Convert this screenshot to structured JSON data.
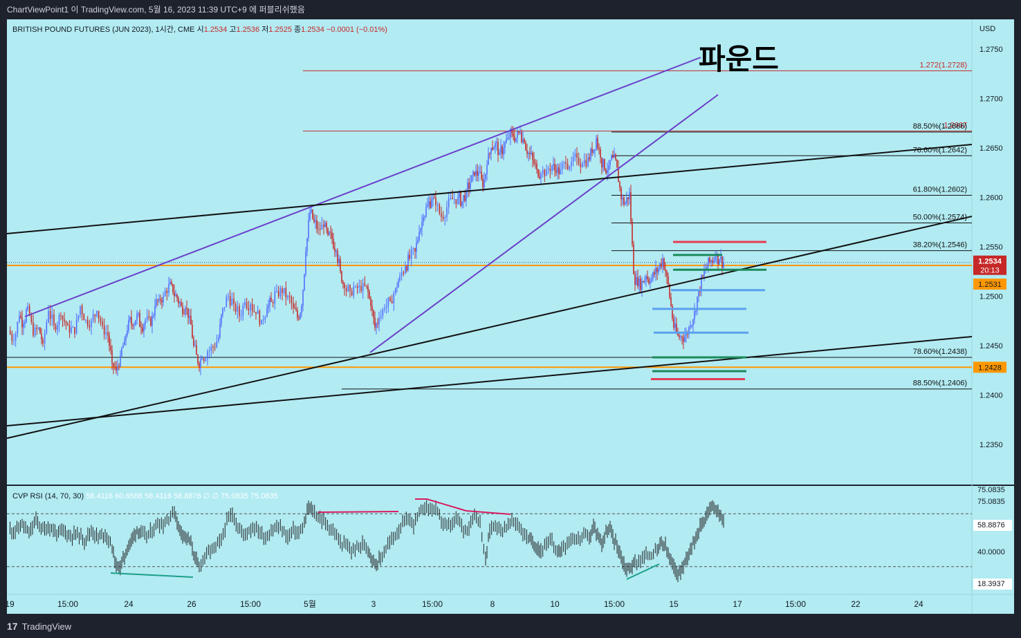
{
  "topbar": {
    "text": "ChartViewPoint1 이 TradingView.com, 5월 16, 2023 11:39 UTC+9 에 퍼블리쉬했음"
  },
  "footer": {
    "logo_text": "TradingView",
    "logo_mark": "17"
  },
  "colors": {
    "bg": "#b2ebf2",
    "bull": "#546dff",
    "bear": "#c62828",
    "orange": "#ff9800",
    "purple": "#6a3fc9",
    "black": "#111111",
    "red": "#e53951",
    "green": "#1b8a5a",
    "blue": "#5aa0f0"
  },
  "chart_data": {
    "type": "candlestick",
    "legend": {
      "symbol": "BRITISH POUND FUTURES (JUN 2023), 1시간, CME",
      "o_label": "시",
      "o": "1.2534",
      "h_label": "고",
      "h": "1.2536",
      "l_label": "저",
      "l": "1.2525",
      "c_label": "종",
      "c": "1.2534",
      "change": "−0.0001 (−0.01%)"
    },
    "annotation": "파운드",
    "currency": "USD",
    "ylim": [
      1.231,
      1.278
    ],
    "y_ticks": [
      "1.2750",
      "1.2700",
      "1.2650",
      "1.2600",
      "1.2550",
      "1.2500",
      "1.2450",
      "1.2400",
      "1.2350"
    ],
    "price_badges": [
      {
        "label": "1.2534",
        "sub": "20:13",
        "value": 1.2534,
        "color": "#c62828"
      },
      {
        "label": "1.2531",
        "value": 1.2531,
        "color": "#ff9800"
      },
      {
        "label": "1.2428",
        "value": 1.2428,
        "color": "#ff9800"
      }
    ],
    "fib_levels": [
      {
        "label": "1.272(1.2728)",
        "value": 1.2728,
        "color": "#c62828"
      },
      {
        "label": "1.2667",
        "value": 1.2667,
        "color": "#c62828"
      },
      {
        "label": "88.50%(1.2666)",
        "value": 1.2666,
        "color": "#111111"
      },
      {
        "label": "78.60%(1.2642)",
        "value": 1.2642,
        "color": "#111111"
      },
      {
        "label": "61.80%(1.2602)",
        "value": 1.2602,
        "color": "#111111"
      },
      {
        "label": "50.00%(1.2574)",
        "value": 1.2574,
        "color": "#111111"
      },
      {
        "label": "38.20%(1.2546)",
        "value": 1.2546,
        "color": "#111111"
      },
      {
        "label": "78.60%(1.2438)",
        "value": 1.2438,
        "color": "#111111"
      },
      {
        "label": "88.50%(1.2406)",
        "value": 1.2406,
        "color": "#111111"
      }
    ],
    "x_ticks": [
      "19",
      "15:00",
      "24",
      "26",
      "15:00",
      "5월",
      "3",
      "15:00",
      "8",
      "10",
      "15:00",
      "15",
      "17",
      "15:00",
      "22",
      "24"
    ],
    "rsi": {
      "legend_name": "CVP RSI (14, 70, 30)",
      "legend_values": [
        "58.4116",
        "60.6568",
        "58.4116",
        "58.8876",
        "∅",
        "∅",
        "75.0835",
        "75.0835"
      ],
      "y_labels": [
        "75.0835",
        "75.0835",
        "58.8876",
        "40.0000",
        "18.3937"
      ],
      "levels": [
        70,
        30
      ],
      "ylim": [
        10,
        90
      ]
    },
    "price_path": [
      [
        0,
        1.2465
      ],
      [
        8,
        1.2455
      ],
      [
        16,
        1.248
      ],
      [
        22,
        1.2472
      ],
      [
        28,
        1.249
      ],
      [
        36,
        1.246
      ],
      [
        44,
        1.2468
      ],
      [
        50,
        1.2452
      ],
      [
        58,
        1.2485
      ],
      [
        66,
        1.247
      ],
      [
        76,
        1.248
      ],
      [
        86,
        1.247
      ],
      [
        96,
        1.2462
      ],
      [
        104,
        1.249
      ],
      [
        112,
        1.2476
      ],
      [
        120,
        1.2475
      ],
      [
        128,
        1.2485
      ],
      [
        136,
        1.247
      ],
      [
        144,
        1.246
      ],
      [
        150,
        1.2432
      ],
      [
        156,
        1.2425
      ],
      [
        162,
        1.244
      ],
      [
        168,
        1.2455
      ],
      [
        174,
        1.2476
      ],
      [
        180,
        1.247
      ],
      [
        186,
        1.2482
      ],
      [
        192,
        1.2468
      ],
      [
        198,
        1.2476
      ],
      [
        206,
        1.247
      ],
      [
        212,
        1.249
      ],
      [
        218,
        1.2497
      ],
      [
        224,
        1.25
      ],
      [
        232,
        1.2512
      ],
      [
        238,
        1.2504
      ],
      [
        244,
        1.2498
      ],
      [
        250,
        1.249
      ],
      [
        256,
        1.2488
      ],
      [
        262,
        1.248
      ],
      [
        268,
        1.245
      ],
      [
        274,
        1.2432
      ],
      [
        280,
        1.2437
      ],
      [
        288,
        1.2444
      ],
      [
        296,
        1.2448
      ],
      [
        304,
        1.2458
      ],
      [
        310,
        1.2488
      ],
      [
        318,
        1.25
      ],
      [
        326,
        1.2492
      ],
      [
        334,
        1.248
      ],
      [
        342,
        1.2494
      ],
      [
        350,
        1.2492
      ],
      [
        358,
        1.2482
      ],
      [
        366,
        1.2476
      ],
      [
        374,
        1.2488
      ],
      [
        380,
        1.2494
      ],
      [
        388,
        1.2505
      ],
      [
        396,
        1.2503
      ],
      [
        404,
        1.25
      ],
      [
        412,
        1.2488
      ],
      [
        418,
        1.2478
      ],
      [
        424,
        1.249
      ],
      [
        430,
        1.2545
      ],
      [
        436,
        1.2585
      ],
      [
        442,
        1.2575
      ],
      [
        448,
        1.2568
      ],
      [
        456,
        1.257
      ],
      [
        462,
        1.2562
      ],
      [
        468,
        1.2558
      ],
      [
        474,
        1.2546
      ],
      [
        480,
        1.2525
      ],
      [
        486,
        1.2508
      ],
      [
        494,
        1.2505
      ],
      [
        502,
        1.251
      ],
      [
        510,
        1.2505
      ],
      [
        518,
        1.251
      ],
      [
        524,
        1.249
      ],
      [
        530,
        1.2468
      ],
      [
        536,
        1.2478
      ],
      [
        544,
        1.2488
      ],
      [
        552,
        1.2495
      ],
      [
        560,
        1.2508
      ],
      [
        566,
        1.252
      ],
      [
        574,
        1.253
      ],
      [
        580,
        1.2538
      ],
      [
        588,
        1.2545
      ],
      [
        594,
        1.2565
      ],
      [
        600,
        1.258
      ],
      [
        606,
        1.2592
      ],
      [
        612,
        1.2598
      ],
      [
        618,
        1.2592
      ],
      [
        626,
        1.258
      ],
      [
        634,
        1.259
      ],
      [
        642,
        1.2598
      ],
      [
        650,
        1.26
      ],
      [
        656,
        1.2596
      ],
      [
        662,
        1.2606
      ],
      [
        668,
        1.2615
      ],
      [
        674,
        1.2622
      ],
      [
        680,
        1.2625
      ],
      [
        686,
        1.261
      ],
      [
        692,
        1.2633
      ],
      [
        698,
        1.265
      ],
      [
        704,
        1.2655
      ],
      [
        710,
        1.2645
      ],
      [
        716,
        1.265
      ],
      [
        722,
        1.266
      ],
      [
        728,
        1.2665
      ],
      [
        734,
        1.266
      ],
      [
        740,
        1.2666
      ],
      [
        746,
        1.2655
      ],
      [
        752,
        1.2645
      ],
      [
        758,
        1.2638
      ],
      [
        764,
        1.2628
      ],
      [
        770,
        1.2624
      ],
      [
        778,
        1.2628
      ],
      [
        786,
        1.2632
      ],
      [
        792,
        1.2625
      ],
      [
        798,
        1.2628
      ],
      [
        806,
        1.2634
      ],
      [
        814,
        1.2636
      ],
      [
        822,
        1.264
      ],
      [
        830,
        1.2634
      ],
      [
        838,
        1.264
      ],
      [
        844,
        1.2645
      ],
      [
        850,
        1.266
      ],
      [
        856,
        1.264
      ],
      [
        862,
        1.2628
      ],
      [
        868,
        1.2632
      ],
      [
        874,
        1.264
      ],
      [
        880,
        1.263
      ],
      [
        886,
        1.2598
      ],
      [
        892,
        1.2594
      ],
      [
        898,
        1.2605
      ],
      [
        904,
        1.2522
      ],
      [
        910,
        1.251
      ],
      [
        916,
        1.2515
      ],
      [
        922,
        1.252
      ],
      [
        928,
        1.2515
      ],
      [
        934,
        1.2522
      ],
      [
        940,
        1.2528
      ],
      [
        946,
        1.2538
      ],
      [
        952,
        1.252
      ],
      [
        958,
        1.249
      ],
      [
        962,
        1.2468
      ],
      [
        968,
        1.246
      ],
      [
        974,
        1.2458
      ],
      [
        980,
        1.2462
      ],
      [
        986,
        1.247
      ],
      [
        992,
        1.2485
      ],
      [
        998,
        1.2505
      ],
      [
        1004,
        1.252
      ],
      [
        1010,
        1.253
      ],
      [
        1016,
        1.2536
      ],
      [
        1022,
        1.254
      ],
      [
        1028,
        1.2537
      ],
      [
        1034,
        1.2534
      ]
    ],
    "rsi_path": [
      [
        0,
        58
      ],
      [
        10,
        57
      ],
      [
        20,
        62
      ],
      [
        30,
        55
      ],
      [
        40,
        65
      ],
      [
        50,
        58
      ],
      [
        60,
        60
      ],
      [
        70,
        55
      ],
      [
        80,
        57
      ],
      [
        90,
        53
      ],
      [
        100,
        55
      ],
      [
        110,
        50
      ],
      [
        120,
        57
      ],
      [
        130,
        52
      ],
      [
        140,
        55
      ],
      [
        150,
        45
      ],
      [
        156,
        30
      ],
      [
        162,
        30
      ],
      [
        168,
        38
      ],
      [
        174,
        46
      ],
      [
        180,
        52
      ],
      [
        186,
        58
      ],
      [
        192,
        55
      ],
      [
        200,
        53
      ],
      [
        208,
        57
      ],
      [
        216,
        63
      ],
      [
        224,
        62
      ],
      [
        232,
        67
      ],
      [
        240,
        72
      ],
      [
        246,
        60
      ],
      [
        252,
        55
      ],
      [
        258,
        52
      ],
      [
        264,
        48
      ],
      [
        270,
        36
      ],
      [
        276,
        30
      ],
      [
        284,
        38
      ],
      [
        292,
        42
      ],
      [
        300,
        45
      ],
      [
        308,
        50
      ],
      [
        316,
        64
      ],
      [
        324,
        70
      ],
      [
        332,
        60
      ],
      [
        340,
        54
      ],
      [
        348,
        58
      ],
      [
        356,
        60
      ],
      [
        364,
        56
      ],
      [
        372,
        52
      ],
      [
        380,
        57
      ],
      [
        388,
        60
      ],
      [
        396,
        58
      ],
      [
        404,
        52
      ],
      [
        412,
        58
      ],
      [
        420,
        55
      ],
      [
        428,
        62
      ],
      [
        434,
        75
      ],
      [
        440,
        72
      ],
      [
        448,
        68
      ],
      [
        456,
        64
      ],
      [
        464,
        60
      ],
      [
        472,
        55
      ],
      [
        480,
        48
      ],
      [
        488,
        46
      ],
      [
        496,
        42
      ],
      [
        504,
        44
      ],
      [
        512,
        47
      ],
      [
        520,
        44
      ],
      [
        526,
        36
      ],
      [
        532,
        32
      ],
      [
        538,
        36
      ],
      [
        546,
        44
      ],
      [
        554,
        50
      ],
      [
        562,
        56
      ],
      [
        570,
        62
      ],
      [
        578,
        66
      ],
      [
        586,
        62
      ],
      [
        594,
        70
      ],
      [
        602,
        75
      ],
      [
        610,
        74
      ],
      [
        618,
        73
      ],
      [
        626,
        65
      ],
      [
        634,
        60
      ],
      [
        642,
        62
      ],
      [
        650,
        66
      ],
      [
        658,
        58
      ],
      [
        666,
        60
      ],
      [
        674,
        70
      ],
      [
        682,
        64
      ],
      [
        690,
        34
      ],
      [
        696,
        58
      ],
      [
        704,
        62
      ],
      [
        712,
        58
      ],
      [
        720,
        60
      ],
      [
        728,
        64
      ],
      [
        736,
        63
      ],
      [
        744,
        55
      ],
      [
        752,
        52
      ],
      [
        758,
        48
      ],
      [
        764,
        45
      ],
      [
        770,
        42
      ],
      [
        778,
        46
      ],
      [
        786,
        50
      ],
      [
        794,
        40
      ],
      [
        800,
        44
      ],
      [
        808,
        48
      ],
      [
        816,
        52
      ],
      [
        824,
        50
      ],
      [
        832,
        54
      ],
      [
        840,
        52
      ],
      [
        846,
        60
      ],
      [
        852,
        54
      ],
      [
        858,
        48
      ],
      [
        864,
        56
      ],
      [
        870,
        58
      ],
      [
        876,
        50
      ],
      [
        882,
        44
      ],
      [
        888,
        34
      ],
      [
        894,
        28
      ],
      [
        900,
        30
      ],
      [
        906,
        33
      ],
      [
        914,
        35
      ],
      [
        922,
        38
      ],
      [
        930,
        40
      ],
      [
        938,
        42
      ],
      [
        944,
        48
      ],
      [
        950,
        45
      ],
      [
        956,
        36
      ],
      [
        962,
        29
      ],
      [
        968,
        25
      ],
      [
        974,
        28
      ],
      [
        980,
        36
      ],
      [
        986,
        44
      ],
      [
        992,
        50
      ],
      [
        998,
        58
      ],
      [
        1004,
        64
      ],
      [
        1010,
        70
      ],
      [
        1016,
        75
      ],
      [
        1022,
        75
      ],
      [
        1028,
        70
      ],
      [
        1034,
        65
      ]
    ]
  }
}
